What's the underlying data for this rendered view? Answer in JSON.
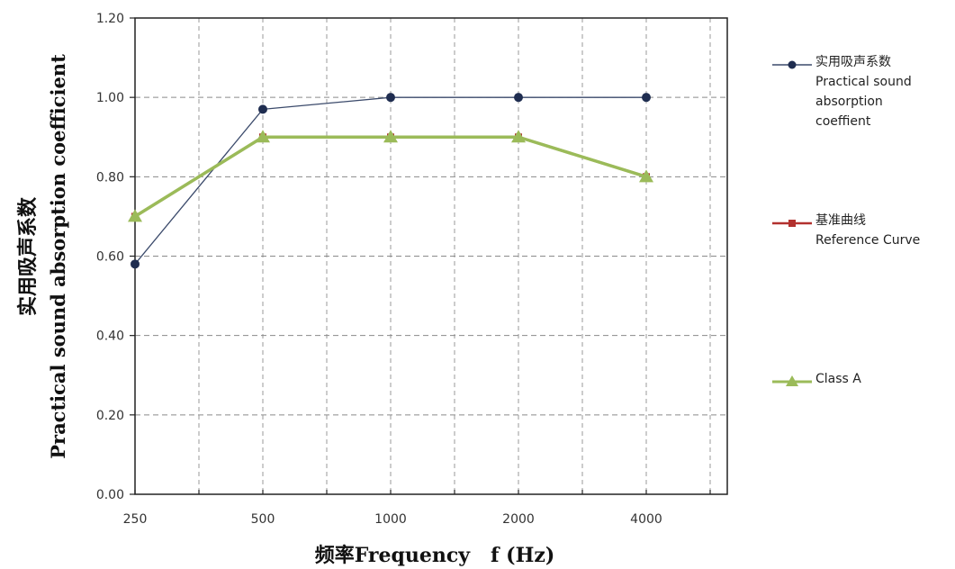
{
  "chart_data": {
    "type": "line",
    "categories": [
      "250",
      "500",
      "1000",
      "2000",
      "4000"
    ],
    "series": [
      {
        "name_lines": [
          "实用吸声系数",
          "Practical sound",
          "absorption",
          "coeffient"
        ],
        "values": [
          0.58,
          0.97,
          1.0,
          1.0,
          1.0
        ],
        "color": "#3b4a6b",
        "marker": "circle"
      },
      {
        "name_lines": [
          "基准曲线",
          "Reference Curve"
        ],
        "values": [
          0.7,
          0.9,
          0.9,
          0.9,
          0.8
        ],
        "color": "#b2312e",
        "marker": "square"
      },
      {
        "name_lines": [
          "Class A"
        ],
        "values": [
          0.7,
          0.9,
          0.9,
          0.9,
          0.8
        ],
        "color": "#9bbb59",
        "marker": "triangle"
      }
    ],
    "yticks": [
      "0.00",
      "0.20",
      "0.40",
      "0.60",
      "0.80",
      "1.00",
      "1.20"
    ],
    "ylim": [
      0,
      1.2
    ],
    "xlabel": "频率Frequency   f (Hz)",
    "ylabel_line1": "实用吸声系数",
    "ylabel_line2": "Practical sound absorption coefficient",
    "grid": true,
    "legend_position": "right"
  }
}
